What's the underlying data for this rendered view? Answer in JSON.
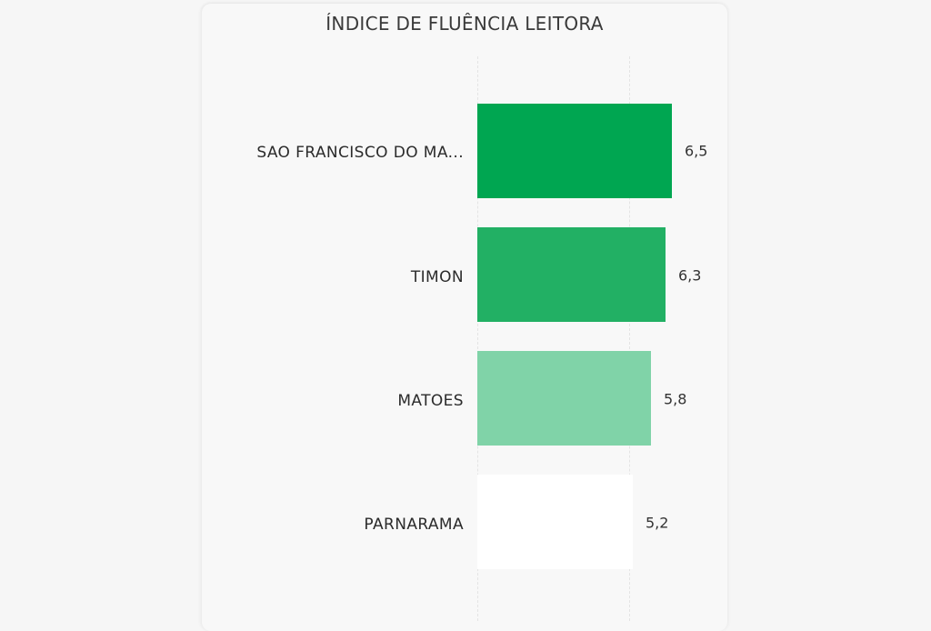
{
  "chart": {
    "title": "ÍNDICE DE FLUÊNCIA LEITORA"
  },
  "bars": [
    {
      "label": "SAO FRANCISCO DO MA...",
      "value_label": "6,5",
      "color": "#00a651"
    },
    {
      "label": "TIMON",
      "value_label": "6,3",
      "color": "#22b064"
    },
    {
      "label": "MATOES",
      "value_label": "5,8",
      "color": "#80d3a8"
    },
    {
      "label": "PARNARAMA",
      "value_label": "5,2",
      "color": "#ffffff"
    }
  ],
  "chart_data": {
    "type": "bar",
    "orientation": "horizontal",
    "title": "ÍNDICE DE FLUÊNCIA LEITORA",
    "categories": [
      "SAO FRANCISCO DO MA...",
      "TIMON",
      "MATOES",
      "PARNARAMA"
    ],
    "values": [
      6.5,
      6.3,
      5.8,
      5.2
    ],
    "value_labels": [
      "6,5",
      "6,3",
      "5,8",
      "5,2"
    ],
    "colors": [
      "#00a651",
      "#22b064",
      "#80d3a8",
      "#ffffff"
    ],
    "xlabel": "",
    "ylabel": "",
    "grid": true,
    "legend": "none",
    "data_labels": true
  }
}
